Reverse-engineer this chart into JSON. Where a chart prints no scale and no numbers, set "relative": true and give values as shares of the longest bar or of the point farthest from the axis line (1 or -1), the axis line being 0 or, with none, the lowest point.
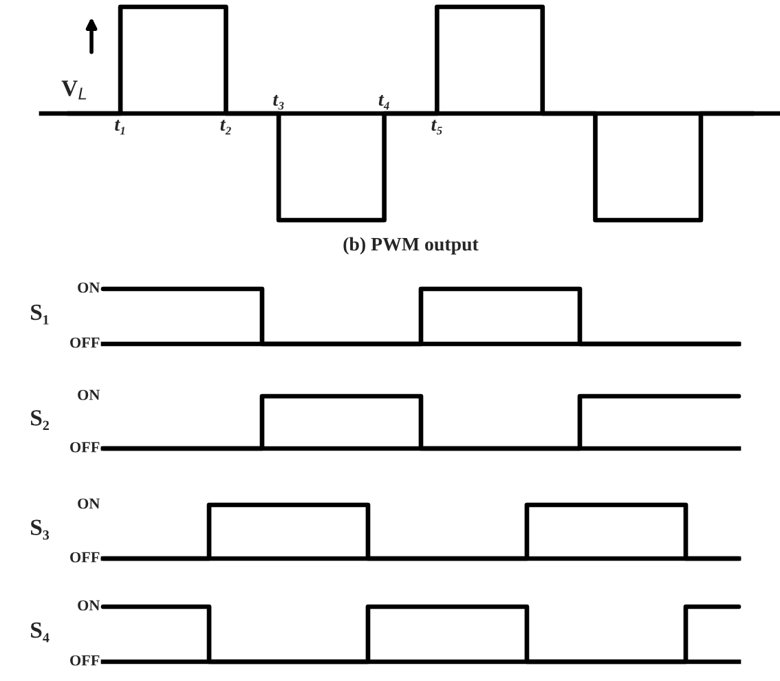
{
  "chart_data": [
    {
      "type": "step",
      "relative": true,
      "xlabel": "(b) PWM output",
      "ylabel": "V$_{L}$",
      "tick_labels": "x",
      "grid": false,
      "legend": false,
      "categories": [
        null,
        "t₁",
        null,
        "t₂",
        "t₃",
        null,
        "t₄",
        "t₅",
        null,
        null,
        null,
        null,
        null,
        null
      ],
      "series": [
        {
          "color": "#000000",
          "values": [
            0,
            1,
            1,
            0,
            -1,
            -1,
            0,
            1,
            1,
            0,
            -1,
            -1,
            0,
            0
          ]
        }
      ]
    },
    {
      "type": "step",
      "ylabel": "S₁",
      "relative": true,
      "annotations": [
        "OFF",
        "ON"
      ],
      "tick_labels": false,
      "grid": false,
      "legend": false,
      "categories": [
        null,
        null,
        null,
        null,
        null,
        null,
        null,
        null,
        null,
        null,
        null,
        null,
        null
      ],
      "series": [
        {
          "color": "#000000",
          "values": [
            1,
            1,
            1,
            0,
            0,
            0,
            1,
            1,
            1,
            0,
            0,
            0,
            0
          ]
        }
      ]
    },
    {
      "type": "step",
      "ylabel": "S₂",
      "relative": true,
      "annotations": [
        "OFF",
        "ON"
      ],
      "tick_labels": false,
      "grid": false,
      "legend": false,
      "categories": [
        null,
        null,
        null,
        null,
        null,
        null,
        null,
        null,
        null,
        null,
        null,
        null,
        null
      ],
      "series": [
        {
          "color": "#000000",
          "values": [
            0,
            0,
            0,
            1,
            1,
            1,
            0,
            0,
            0,
            1,
            1,
            1,
            1
          ]
        }
      ]
    },
    {
      "type": "step",
      "ylabel": "S₃",
      "relative": true,
      "annotations": [
        "OFF",
        "ON"
      ],
      "tick_labels": false,
      "grid": false,
      "legend": false,
      "categories": [
        null,
        null,
        null,
        null,
        null,
        null,
        null,
        null,
        null,
        null,
        null,
        null,
        null
      ],
      "series": [
        {
          "color": "#000000",
          "values": [
            0,
            0,
            1,
            1,
            1,
            0,
            0,
            0,
            1,
            1,
            1,
            0,
            0
          ]
        }
      ]
    },
    {
      "type": "step",
      "ylabel": "S₄",
      "relative": true,
      "annotations": [
        "OFF",
        "ON"
      ],
      "tick_labels": false,
      "grid": false,
      "legend": false,
      "categories": [
        null,
        null,
        null,
        null,
        null,
        null,
        null,
        null,
        null,
        null,
        null,
        null,
        null
      ],
      "series": [
        {
          "color": "#000000",
          "values": [
            1,
            1,
            0,
            0,
            0,
            1,
            1,
            1,
            0,
            0,
            0,
            1,
            1
          ]
        }
      ]
    }
  ]
}
